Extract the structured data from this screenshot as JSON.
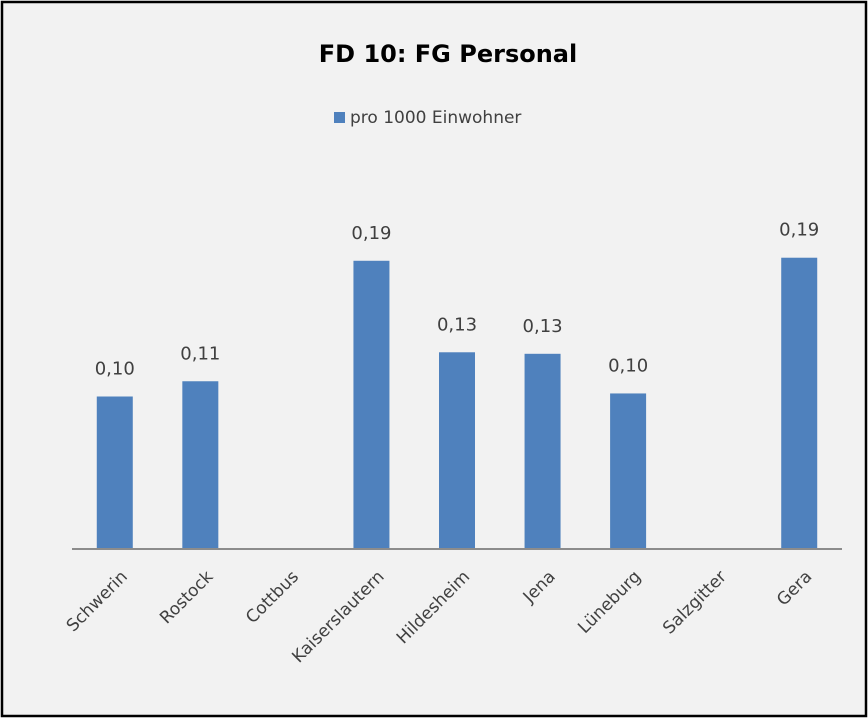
{
  "chart_data": {
    "type": "bar",
    "title": "FD 10: FG Personal",
    "categories": [
      "Schwerin",
      "Rostock",
      "Cottbus",
      "Kaiserslautern",
      "Hildesheim",
      "Jena",
      "Lüneburg",
      "Salzgitter",
      "Gera"
    ],
    "series": [
      {
        "name": "pro 1000 Einwohner",
        "color": "#4f81bd",
        "values": [
          0.1,
          0.11,
          null,
          0.189,
          0.129,
          0.128,
          0.102,
          null,
          0.191
        ],
        "value_labels": [
          "0,10",
          "0,11",
          null,
          "0,19",
          "0,13",
          "0,13",
          "0,10",
          null,
          "0,19"
        ]
      }
    ],
    "ylim": [
      0,
      0.2
    ],
    "legend": "top"
  }
}
